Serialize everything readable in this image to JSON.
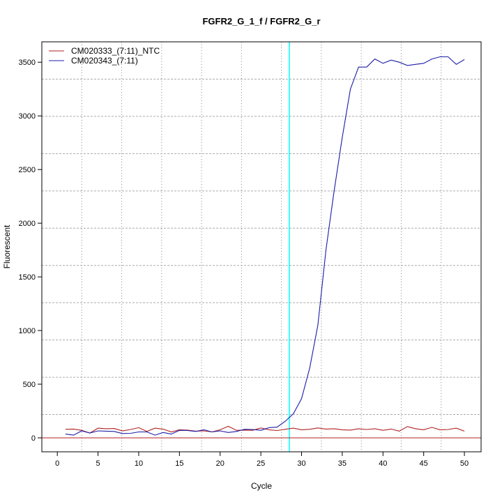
{
  "chart_data": {
    "type": "line",
    "title": "FGFR2_G_1_f / FGFR2_G_r",
    "xlabel": "Cycle",
    "ylabel": "Fluorescent",
    "xlim": [
      -1.9,
      52.05
    ],
    "ylim": [
      -130,
      3690
    ],
    "xticks": [
      0,
      5,
      10,
      15,
      20,
      25,
      30,
      35,
      40,
      45,
      50
    ],
    "yticks": [
      0,
      500,
      1000,
      1500,
      2000,
      2500,
      3000,
      3500
    ],
    "grid": "on (dotted, 11 x 11)",
    "legend_position": "top-left",
    "threshold_line": {
      "axis": "y",
      "value": 0,
      "color": "#b22222"
    },
    "cycle_marker": {
      "axis": "x",
      "value": 28.5,
      "color": "#00ffff"
    },
    "x": [
      1,
      2,
      3,
      4,
      5,
      6,
      7,
      8,
      9,
      10,
      11,
      12,
      13,
      14,
      15,
      16,
      17,
      18,
      19,
      20,
      21,
      22,
      23,
      24,
      25,
      26,
      27,
      28,
      29,
      30,
      31,
      32,
      33,
      34,
      35,
      36,
      37,
      38,
      39,
      40,
      41,
      42,
      43,
      44,
      45,
      46,
      47,
      48,
      49,
      50
    ],
    "series": [
      {
        "name": "CM020333_(7:11)_NTC",
        "color": "#b22222",
        "values": [
          80,
          82,
          70,
          45,
          90,
          85,
          87,
          65,
          78,
          95,
          60,
          90,
          82,
          55,
          75,
          72,
          62,
          65,
          55,
          75,
          108,
          70,
          72,
          70,
          92,
          75,
          68,
          80,
          90,
          75,
          80,
          92,
          82,
          85,
          75,
          72,
          85,
          78,
          85,
          70,
          82,
          62,
          105,
          85,
          75,
          98,
          75,
          78,
          90,
          62
        ]
      },
      {
        "name": "CM020343_(7:11)",
        "color": "#1c1ca8",
        "values": [
          35,
          25,
          65,
          45,
          65,
          62,
          60,
          40,
          42,
          55,
          55,
          25,
          50,
          35,
          70,
          68,
          60,
          75,
          55,
          65,
          50,
          60,
          80,
          78,
          70,
          95,
          100,
          155,
          225,
          365,
          650,
          1050,
          1750,
          2300,
          2800,
          3250,
          3455,
          3455,
          3530,
          3490,
          3520,
          3500,
          3470,
          3480,
          3490,
          3530,
          3550,
          3550,
          3480,
          3525
        ]
      }
    ]
  }
}
